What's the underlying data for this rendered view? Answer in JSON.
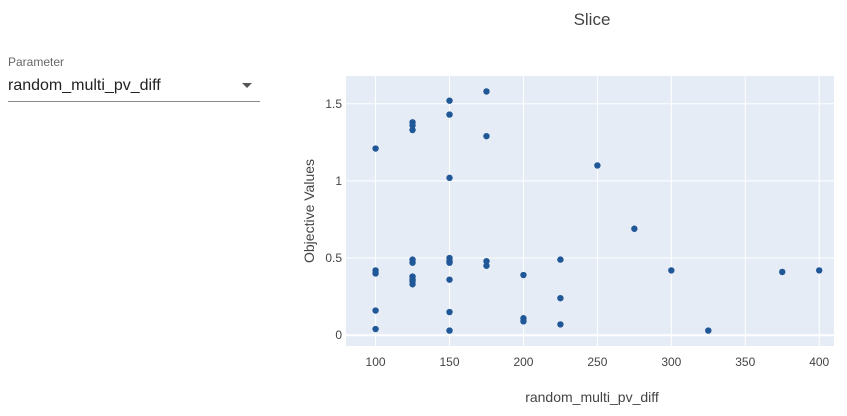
{
  "parameter": {
    "label": "Parameter",
    "selected": "random_multi_pv_diff"
  },
  "colors": {
    "plot_bg": "#e5ecf6",
    "grid": "#ffffff",
    "marker": "#1f5797"
  },
  "chart_data": {
    "type": "scatter",
    "title": "Slice",
    "xlabel": "random_multi_pv_diff",
    "ylabel": "Objective Values",
    "xlim": [
      80,
      410
    ],
    "ylim": [
      -0.07,
      1.68
    ],
    "xticks": [
      100,
      150,
      200,
      250,
      300,
      350,
      400
    ],
    "yticks": [
      0,
      0.5,
      1,
      1.5
    ],
    "ytick_labels": [
      "0",
      "0.5",
      "1",
      "1.5"
    ],
    "grid": true,
    "series": [
      {
        "x": [
          100,
          100,
          100,
          100,
          100,
          125,
          125,
          125,
          125,
          125,
          125,
          125,
          125,
          125,
          150,
          150,
          150,
          150,
          150,
          150,
          150,
          150,
          150,
          175,
          175,
          175,
          175,
          200,
          200,
          200,
          225,
          225,
          225,
          250,
          275,
          300,
          325,
          375,
          400
        ],
        "y": [
          1.21,
          0.42,
          0.4,
          0.16,
          0.04,
          1.38,
          1.36,
          1.33,
          0.49,
          0.47,
          0.38,
          0.36,
          0.33,
          0.35,
          1.52,
          1.43,
          1.02,
          0.5,
          0.47,
          0.36,
          0.15,
          0.03,
          0.48,
          1.58,
          1.29,
          0.48,
          0.45,
          0.39,
          0.11,
          0.09,
          0.49,
          0.24,
          0.07,
          1.1,
          0.69,
          0.42,
          0.03,
          0.41,
          0.42
        ]
      }
    ]
  }
}
